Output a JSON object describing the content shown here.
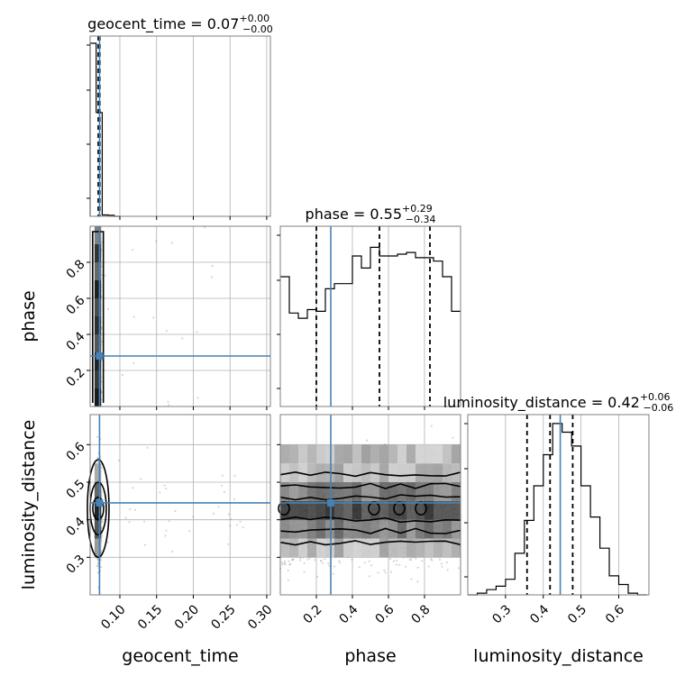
{
  "chart_data": {
    "type": "corner",
    "parameters": [
      "geocent_time",
      "phase",
      "luminosity_distance"
    ],
    "axis_labels": {
      "geocent_time": "geocent_time",
      "phase": "phase",
      "luminosity_distance": "luminosity_distance"
    },
    "ranges": {
      "geocent_time": [
        0.0595,
        0.305
      ],
      "phase": [
        0.0,
        1.0
      ],
      "luminosity_distance": [
        0.2,
        0.68
      ]
    },
    "ticks": {
      "geocent_time": {
        "values": [
          0.1,
          0.15,
          0.2,
          0.25,
          0.3
        ],
        "labels": [
          "0.10",
          "0.15",
          "0.20",
          "0.25",
          "0.30"
        ]
      },
      "phase": {
        "values": [
          0.2,
          0.4,
          0.6,
          0.8
        ],
        "labels": [
          "0.2",
          "0.4",
          "0.6",
          "0.8"
        ]
      },
      "luminosity_distance": {
        "values": [
          0.3,
          0.4,
          0.5,
          0.6
        ],
        "labels": [
          "0.3",
          "0.4",
          "0.5",
          "0.6"
        ]
      }
    },
    "titles": {
      "geocent_time": {
        "prefix": "geocent_time = 0.07",
        "plus": "+0.00",
        "minus": "−0.00"
      },
      "phase": {
        "prefix": "phase = 0.55",
        "plus": "+0.29",
        "minus": "−0.34"
      },
      "luminosity_distance": {
        "prefix": "luminosity_distance = 0.42",
        "plus": "+0.06",
        "minus": "−0.06"
      }
    },
    "truths": {
      "geocent_time": 0.0723,
      "phase": 0.28,
      "luminosity_distance": 0.445
    },
    "quantiles": {
      "geocent_time": [
        0.0706,
        0.0716,
        0.0727
      ],
      "phase": [
        0.2,
        0.55,
        0.83
      ],
      "luminosity_distance": [
        0.357,
        0.418,
        0.478
      ]
    },
    "histograms": {
      "geocent_time": {
        "edges": [
          0.0595,
          0.0677,
          0.0759,
          0.0841,
          0.0923,
          0.1005
        ],
        "counts": [
          1.0,
          0.6,
          0.008,
          0.006,
          0.0
        ]
      },
      "phase": {
        "edges": [
          0.0,
          0.05,
          0.1,
          0.15,
          0.2,
          0.25,
          0.3,
          0.35,
          0.4,
          0.45,
          0.5,
          0.55,
          0.6,
          0.65,
          0.7,
          0.75,
          0.8,
          0.85,
          0.9,
          0.95,
          1.0
        ],
        "counts": [
          0.75,
          0.54,
          0.51,
          0.56,
          0.55,
          0.68,
          0.71,
          0.71,
          0.87,
          0.8,
          0.92,
          0.87,
          0.87,
          0.88,
          0.89,
          0.86,
          0.86,
          0.84,
          0.75,
          0.55
        ]
      },
      "luminosity_distance": {
        "edges": [
          0.2,
          0.225,
          0.25,
          0.275,
          0.3,
          0.325,
          0.35,
          0.375,
          0.4,
          0.425,
          0.45,
          0.475,
          0.5,
          0.525,
          0.55,
          0.575,
          0.6,
          0.625,
          0.65,
          0.675
        ],
        "counts": [
          0.0,
          0.01,
          0.03,
          0.05,
          0.09,
          0.24,
          0.43,
          0.63,
          0.81,
          0.99,
          0.94,
          0.86,
          0.63,
          0.45,
          0.27,
          0.11,
          0.06,
          0.01,
          0.0
        ]
      }
    },
    "colors": {
      "truth": "#4682b4",
      "line": "#000000",
      "grid": "#b0b0b0"
    }
  }
}
